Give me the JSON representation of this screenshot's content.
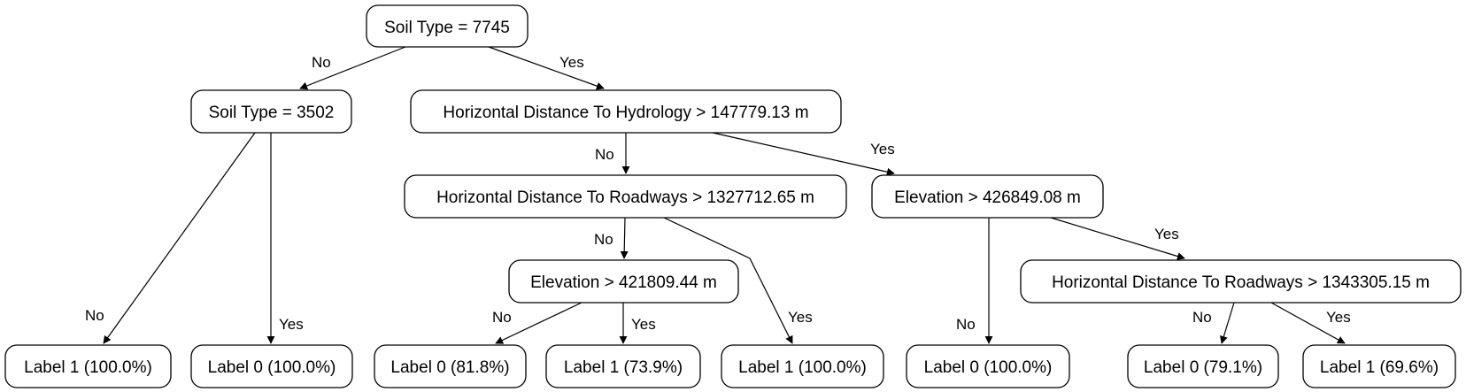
{
  "nodes": [
    {
      "id": "n0",
      "label": "Soil Type = 7745"
    },
    {
      "id": "n1",
      "label": "Soil Type = 3502"
    },
    {
      "id": "n2",
      "label": "Horizontal Distance To Hydrology > 147779.13 m"
    },
    {
      "id": "n3",
      "label": "Label 1 (100.0%)"
    },
    {
      "id": "n4",
      "label": "Label 0 (100.0%)"
    },
    {
      "id": "n5",
      "label": "Horizontal Distance To Roadways > 1327712.65 m"
    },
    {
      "id": "n6",
      "label": "Elevation > 426849.08 m"
    },
    {
      "id": "n7",
      "label": "Elevation > 421809.44 m"
    },
    {
      "id": "n8",
      "label": "Label 1 (100.0%)"
    },
    {
      "id": "n9",
      "label": "Label 0 (81.8%)"
    },
    {
      "id": "n10",
      "label": "Label 1 (73.9%)"
    },
    {
      "id": "n11",
      "label": "Label 0 (100.0%)"
    },
    {
      "id": "n12",
      "label": "Horizontal Distance To Roadways > 1343305.15 m"
    },
    {
      "id": "n13",
      "label": "Label 0 (79.1%)"
    },
    {
      "id": "n14",
      "label": "Label 1 (69.6%)"
    }
  ],
  "edges": [
    {
      "from": "n0",
      "to": "n1",
      "label": "No"
    },
    {
      "from": "n0",
      "to": "n2",
      "label": "Yes"
    },
    {
      "from": "n1",
      "to": "n3",
      "label": "No"
    },
    {
      "from": "n1",
      "to": "n4",
      "label": "Yes"
    },
    {
      "from": "n2",
      "to": "n5",
      "label": "No"
    },
    {
      "from": "n2",
      "to": "n6",
      "label": "Yes"
    },
    {
      "from": "n5",
      "to": "n7",
      "label": "No"
    },
    {
      "from": "n5",
      "to": "n8",
      "label": "Yes"
    },
    {
      "from": "n7",
      "to": "n9",
      "label": "No"
    },
    {
      "from": "n7",
      "to": "n10",
      "label": "Yes"
    },
    {
      "from": "n6",
      "to": "n11",
      "label": "No"
    },
    {
      "from": "n6",
      "to": "n12",
      "label": "Yes"
    },
    {
      "from": "n12",
      "to": "n13",
      "label": "No"
    },
    {
      "from": "n12",
      "to": "n14",
      "label": "Yes"
    }
  ]
}
